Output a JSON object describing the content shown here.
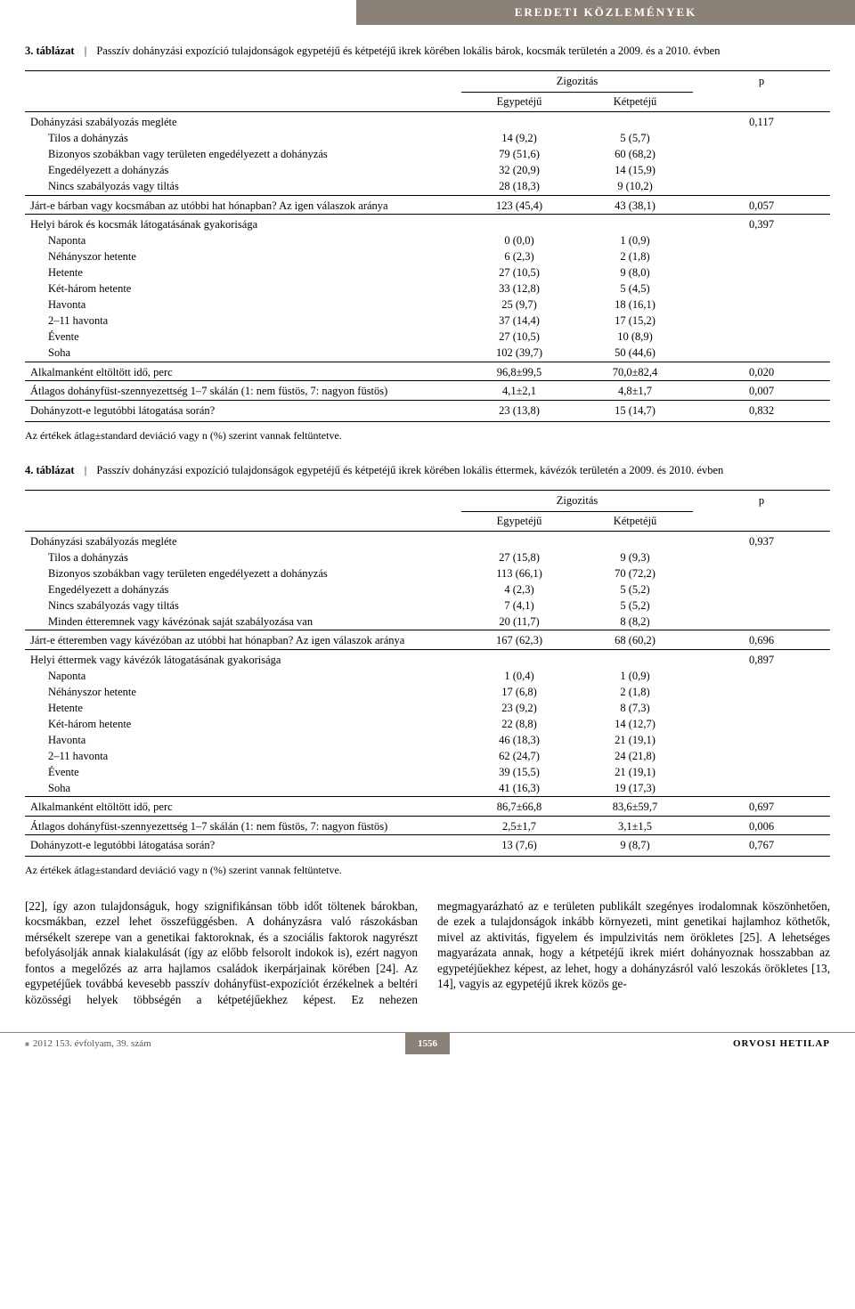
{
  "banner": "EREDETI KÖZLEMÉNYEK",
  "table3": {
    "label": "3. táblázat",
    "caption": "Passzív dohányzási expozíció tulajdonságok egypetéjű és kétpetéjű ikrek körében lokális bárok, kocsmák területén a 2009. és a 2010. évben",
    "zig": "Zigozitás",
    "col1": "Egypetéjű",
    "col2": "Kétpetéjű",
    "pcol": "p",
    "rows": [
      {
        "grp": true,
        "label": "Dohányzási szabályozás megléte",
        "c1": "",
        "c2": "",
        "p": "0,117"
      },
      {
        "indent": true,
        "label": "Tilos a dohányzás",
        "c1": "14 (9,2)",
        "c2": "5 (5,7)",
        "p": ""
      },
      {
        "indent": true,
        "label": "Bizonyos szobákban vagy területen engedélyezett a dohányzás",
        "c1": "79 (51,6)",
        "c2": "60 (68,2)",
        "p": ""
      },
      {
        "indent": true,
        "label": "Engedélyezett a dohányzás",
        "c1": "32 (20,9)",
        "c2": "14 (15,9)",
        "p": ""
      },
      {
        "indent": true,
        "label": "Nincs szabályozás vagy tiltás",
        "c1": "28 (18,3)",
        "c2": "9 (10,2)",
        "p": ""
      },
      {
        "grp": true,
        "label": "Járt-e bárban vagy kocsmában az utóbbi hat hónapban? Az igen válaszok aránya",
        "c1": "123 (45,4)",
        "c2": "43 (38,1)",
        "p": "0,057"
      },
      {
        "grp": true,
        "label": "Helyi bárok és kocsmák látogatásának gyakorisága",
        "c1": "",
        "c2": "",
        "p": "0,397"
      },
      {
        "indent": true,
        "label": "Naponta",
        "c1": "0 (0,0)",
        "c2": "1 (0,9)",
        "p": ""
      },
      {
        "indent": true,
        "label": "Néhányszor hetente",
        "c1": "6 (2,3)",
        "c2": "2 (1,8)",
        "p": ""
      },
      {
        "indent": true,
        "label": "Hetente",
        "c1": "27 (10,5)",
        "c2": "9 (8,0)",
        "p": ""
      },
      {
        "indent": true,
        "label": "Két-három hetente",
        "c1": "33 (12,8)",
        "c2": "5 (4,5)",
        "p": ""
      },
      {
        "indent": true,
        "label": "Havonta",
        "c1": "25 (9,7)",
        "c2": "18 (16,1)",
        "p": ""
      },
      {
        "indent": true,
        "label": "2–11 havonta",
        "c1": "37 (14,4)",
        "c2": "17 (15,2)",
        "p": ""
      },
      {
        "indent": true,
        "label": "Évente",
        "c1": "27 (10,5)",
        "c2": "10 (8,9)",
        "p": ""
      },
      {
        "indent": true,
        "label": "Soha",
        "c1": "102 (39,7)",
        "c2": "50 (44,6)",
        "p": ""
      },
      {
        "grp": true,
        "label": "Alkalmanként eltöltött idő, perc",
        "c1": "96,8±99,5",
        "c2": "70,0±82,4",
        "p": "0,020"
      },
      {
        "grp": true,
        "label": "Átlagos dohányfüst-szennyezettség 1–7 skálán (1: nem füstös, 7: nagyon füstös)",
        "c1": "4,1±2,1",
        "c2": "4,8±1,7",
        "p": "0,007"
      },
      {
        "grp": true,
        "last": true,
        "label": "Dohányzott-e legutóbbi látogatása során?",
        "c1": "23 (13,8)",
        "c2": "15 (14,7)",
        "p": "0,832"
      }
    ],
    "note": "Az értékek átlag±standard deviáció vagy n (%) szerint vannak feltüntetve."
  },
  "table4": {
    "label": "4. táblázat",
    "caption": "Passzív dohányzási expozíció tulajdonságok egypetéjű és kétpetéjű ikrek körében lokális éttermek, kávézók területén a 2009. és 2010. évben",
    "zig": "Zigozitás",
    "col1": "Egypetéjű",
    "col2": "Kétpetéjű",
    "pcol": "p",
    "rows": [
      {
        "grp": true,
        "label": "Dohányzási szabályozás megléte",
        "c1": "",
        "c2": "",
        "p": "0,937"
      },
      {
        "indent": true,
        "label": "Tilos a dohányzás",
        "c1": "27 (15,8)",
        "c2": "9 (9,3)",
        "p": ""
      },
      {
        "indent": true,
        "label": "Bizonyos szobákban vagy területen engedélyezett a dohányzás",
        "c1": "113 (66,1)",
        "c2": "70 (72,2)",
        "p": ""
      },
      {
        "indent": true,
        "label": "Engedélyezett a dohányzás",
        "c1": "4 (2,3)",
        "c2": "5 (5,2)",
        "p": ""
      },
      {
        "indent": true,
        "label": "Nincs szabályozás vagy tiltás",
        "c1": "7 (4,1)",
        "c2": "5 (5,2)",
        "p": ""
      },
      {
        "indent": true,
        "label": "Minden étteremnek vagy kávézónak saját szabályozása van",
        "c1": "20 (11,7)",
        "c2": "8 (8,2)",
        "p": ""
      },
      {
        "grp": true,
        "label": "Járt-e étteremben vagy kávézóban az utóbbi hat hónapban? Az igen válaszok aránya",
        "c1": "167 (62,3)",
        "c2": "68 (60,2)",
        "p": "0,696"
      },
      {
        "grp": true,
        "label": "Helyi éttermek vagy kávézók látogatásának gyakorisága",
        "c1": "",
        "c2": "",
        "p": "0,897"
      },
      {
        "indent": true,
        "label": "Naponta",
        "c1": "1 (0,4)",
        "c2": "1 (0,9)",
        "p": ""
      },
      {
        "indent": true,
        "label": "Néhányszor hetente",
        "c1": "17 (6,8)",
        "c2": "2 (1,8)",
        "p": ""
      },
      {
        "indent": true,
        "label": "Hetente",
        "c1": "23 (9,2)",
        "c2": "8 (7,3)",
        "p": ""
      },
      {
        "indent": true,
        "label": "Két-három hetente",
        "c1": "22 (8,8)",
        "c2": "14 (12,7)",
        "p": ""
      },
      {
        "indent": true,
        "label": "Havonta",
        "c1": "46 (18,3)",
        "c2": "21 (19,1)",
        "p": ""
      },
      {
        "indent": true,
        "label": "2–11 havonta",
        "c1": "62 (24,7)",
        "c2": "24 (21,8)",
        "p": ""
      },
      {
        "indent": true,
        "label": "Évente",
        "c1": "39 (15,5)",
        "c2": "21 (19,1)",
        "p": ""
      },
      {
        "indent": true,
        "label": "Soha",
        "c1": "41 (16,3)",
        "c2": "19 (17,3)",
        "p": ""
      },
      {
        "grp": true,
        "label": "Alkalmanként eltöltött idő, perc",
        "c1": "86,7±66,8",
        "c2": "83,6±59,7",
        "p": "0,697"
      },
      {
        "grp": true,
        "label": "Átlagos dohányfüst-szennyezettség 1–7 skálán (1: nem füstös, 7: nagyon füstös)",
        "c1": "2,5±1,7",
        "c2": "3,1±1,5",
        "p": "0,006"
      },
      {
        "grp": true,
        "last": true,
        "label": "Dohányzott-e legutóbbi látogatása során?",
        "c1": "13 (7,6)",
        "c2": "9 (8,7)",
        "p": "0,767"
      }
    ],
    "note": "Az értékek átlag±standard deviáció vagy n (%) szerint vannak feltüntetve."
  },
  "bodytext": "[22], így azon tulajdonságuk, hogy szignifikánsan több időt töltenek bárokban, kocsmákban, ezzel lehet összefüggésben. A dohányzásra való rászokásban mérsékelt szerepe van a genetikai faktoroknak, és a szociális faktorok nagyrészt befolyásolják annak kialakulását (így az előbb felsorolt indokok is), ezért nagyon fontos a megelőzés az arra hajlamos családok ikerpárjainak körében [24]. Az egypetéjűek továbbá kevesebb passzív dohányfüst-expozíciót érzékelnek a beltéri közösségi helyek többségén a kétpetéjűekhez képest. Ez nehezen megmagyarázható az e területen publikált szegényes irodalomnak köszönhetően, de ezek a tulajdonságok inkább környezeti, mint genetikai hajlamhoz köthetők, mivel az aktivitás, figyelem és impulzivitás nem örökletes [25]. A lehetséges magyarázata annak, hogy a kétpetéjű ikrek miért dohányoznak hosszabban az egypetéjűekhez képest, az lehet, hogy a dohányzásról való leszokás örökletes [13, 14], vagyis az egypetéjű ikrek közös ge-",
  "footer": {
    "left": "2012   153. évfolyam, 39. szám",
    "page": "1556",
    "right": "ORVOSI HETILAP"
  }
}
